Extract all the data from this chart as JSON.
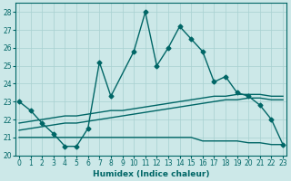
{
  "xlabel": "Humidex (Indice chaleur)",
  "bg_color": "#cce8e8",
  "line_color": "#006666",
  "grid_color": "#a8d0d0",
  "xlim": [
    -0.3,
    23.3
  ],
  "ylim": [
    20,
    28.5
  ],
  "yticks": [
    20,
    21,
    22,
    23,
    24,
    25,
    26,
    27,
    28
  ],
  "xticks": [
    0,
    1,
    2,
    3,
    4,
    5,
    6,
    7,
    8,
    9,
    10,
    11,
    12,
    13,
    14,
    15,
    16,
    17,
    18,
    19,
    20,
    21,
    22,
    23
  ],
  "series": [
    {
      "x": [
        0,
        1,
        2,
        3,
        4,
        5,
        6,
        7,
        8,
        10,
        11,
        12,
        13,
        14,
        15,
        16,
        17,
        18,
        19,
        20,
        21,
        22,
        23
      ],
      "y": [
        23.0,
        22.5,
        21.8,
        21.2,
        20.5,
        20.5,
        21.5,
        25.2,
        23.3,
        25.8,
        28.0,
        25.0,
        26.0,
        27.2,
        26.5,
        25.8,
        24.1,
        24.4,
        23.5,
        23.3,
        22.8,
        22.0,
        20.6
      ],
      "marker": "D",
      "markersize": 2.5,
      "linewidth": 1.0
    },
    {
      "x": [
        0,
        1,
        2,
        3,
        4,
        5,
        6,
        7,
        8,
        9,
        10,
        11,
        12,
        13,
        14,
        15,
        16,
        17,
        18,
        19,
        20,
        21,
        22,
        23
      ],
      "y": [
        21.8,
        21.9,
        22.0,
        22.1,
        22.2,
        22.2,
        22.3,
        22.4,
        22.5,
        22.5,
        22.6,
        22.7,
        22.8,
        22.9,
        23.0,
        23.1,
        23.2,
        23.3,
        23.3,
        23.4,
        23.4,
        23.4,
        23.3,
        23.3
      ],
      "marker": null,
      "markersize": 0,
      "linewidth": 1.0
    },
    {
      "x": [
        0,
        1,
        2,
        3,
        4,
        5,
        6,
        7,
        8,
        9,
        10,
        11,
        12,
        13,
        14,
        15,
        16,
        17,
        18,
        19,
        20,
        21,
        22,
        23
      ],
      "y": [
        21.4,
        21.5,
        21.6,
        21.7,
        21.8,
        21.8,
        21.9,
        22.0,
        22.1,
        22.2,
        22.3,
        22.4,
        22.5,
        22.6,
        22.7,
        22.8,
        22.9,
        23.0,
        23.1,
        23.1,
        23.2,
        23.2,
        23.1,
        23.1
      ],
      "marker": null,
      "markersize": 0,
      "linewidth": 1.0
    },
    {
      "x": [
        0,
        1,
        2,
        3,
        4,
        5,
        6,
        7,
        8,
        9,
        10,
        11,
        12,
        13,
        14,
        15,
        16,
        17,
        18,
        19,
        20,
        21,
        22,
        23
      ],
      "y": [
        21.0,
        21.0,
        21.0,
        21.0,
        21.0,
        21.0,
        21.0,
        21.0,
        21.0,
        21.0,
        21.0,
        21.0,
        21.0,
        21.0,
        21.0,
        21.0,
        20.8,
        20.8,
        20.8,
        20.8,
        20.7,
        20.7,
        20.6,
        20.6
      ],
      "marker": null,
      "markersize": 0,
      "linewidth": 1.0
    }
  ]
}
